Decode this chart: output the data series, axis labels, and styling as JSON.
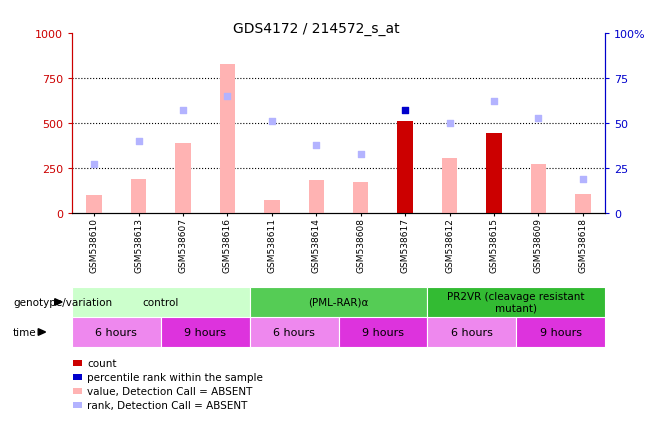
{
  "title": "GDS4172 / 214572_s_at",
  "samples": [
    "GSM538610",
    "GSM538613",
    "GSM538607",
    "GSM538616",
    "GSM538611",
    "GSM538614",
    "GSM538608",
    "GSM538617",
    "GSM538612",
    "GSM538615",
    "GSM538609",
    "GSM538618"
  ],
  "bar_values": [
    100,
    190,
    390,
    830,
    75,
    185,
    170,
    510,
    305,
    445,
    275,
    105
  ],
  "bar_colors": [
    "#ffb3b3",
    "#ffb3b3",
    "#ffb3b3",
    "#ffb3b3",
    "#ffb3b3",
    "#ffb3b3",
    "#ffb3b3",
    "#cc0000",
    "#ffb3b3",
    "#cc0000",
    "#ffb3b3",
    "#ffb3b3"
  ],
  "rank_values": [
    27,
    40,
    57,
    65,
    51,
    38,
    33,
    57,
    50,
    62,
    53,
    19
  ],
  "rank_colors": [
    "#b3b3ff",
    "#b3b3ff",
    "#b3b3ff",
    "#b3b3ff",
    "#b3b3ff",
    "#b3b3ff",
    "#b3b3ff",
    "#0000cc",
    "#b3b3ff",
    "#b3b3ff",
    "#b3b3ff",
    "#b3b3ff"
  ],
  "ylim_left": [
    0,
    1000
  ],
  "ylim_right": [
    0,
    100
  ],
  "yticks_left": [
    0,
    250,
    500,
    750,
    1000
  ],
  "yticks_right": [
    0,
    25,
    50,
    75,
    100
  ],
  "hlines": [
    250,
    500,
    750
  ],
  "genotype_groups": [
    {
      "label": "control",
      "start": 0,
      "end": 4,
      "color": "#ccffcc"
    },
    {
      "label": "(PML-RAR)α",
      "start": 4,
      "end": 8,
      "color": "#55cc55"
    },
    {
      "label": "PR2VR (cleavage resistant\nmutant)",
      "start": 8,
      "end": 12,
      "color": "#33bb33"
    }
  ],
  "time_groups": [
    {
      "label": "6 hours",
      "start": 0,
      "end": 2,
      "color": "#ee88ee"
    },
    {
      "label": "9 hours",
      "start": 2,
      "end": 4,
      "color": "#dd33dd"
    },
    {
      "label": "6 hours",
      "start": 4,
      "end": 6,
      "color": "#ee88ee"
    },
    {
      "label": "9 hours",
      "start": 6,
      "end": 8,
      "color": "#dd33dd"
    },
    {
      "label": "6 hours",
      "start": 8,
      "end": 10,
      "color": "#ee88ee"
    },
    {
      "label": "9 hours",
      "start": 10,
      "end": 12,
      "color": "#dd33dd"
    }
  ],
  "legend_items": [
    {
      "label": "count",
      "color": "#cc0000"
    },
    {
      "label": "percentile rank within the sample",
      "color": "#0000cc"
    },
    {
      "label": "value, Detection Call = ABSENT",
      "color": "#ffb3b3"
    },
    {
      "label": "rank, Detection Call = ABSENT",
      "color": "#b3b3ff"
    }
  ],
  "left_axis_color": "#cc0000",
  "right_axis_color": "#0000cc",
  "genotype_label": "genotype/variation",
  "time_label": "time",
  "bar_width": 0.35
}
